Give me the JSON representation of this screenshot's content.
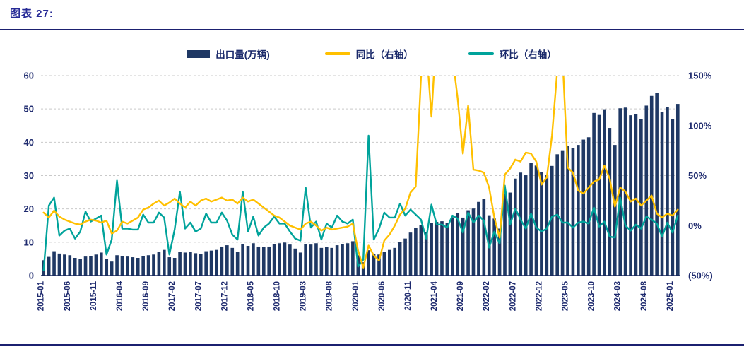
{
  "page": {
    "title": "图表 27:"
  },
  "colors": {
    "accent": "#262a96",
    "rule": "#1b2070",
    "bar": "#1F3864",
    "yoy_line": "#FFC000",
    "mom_line": "#00A39B",
    "axis_text": "#1e2a6e",
    "gridline": "#c9c9c9"
  },
  "legend": [
    {
      "label": "出口量(万辆)",
      "type": "bar",
      "color": "#1F3864"
    },
    {
      "label": "同比（右轴）",
      "type": "line",
      "color": "#FFC000"
    },
    {
      "label": "环比（右轴）",
      "type": "line",
      "color": "#00A39B"
    }
  ],
  "chart_data": {
    "type": "bar+line",
    "title": "图表 27:",
    "grid": "horizontal-dashed",
    "legend_position": "top-center",
    "x_start_month": "2015-01",
    "x_end_month": "2025-02",
    "x_tick_every": 5,
    "x_tick_labels": [
      "2015-01",
      "2015-06",
      "2015-11",
      "2016-04",
      "2016-09",
      "2017-02",
      "2017-07",
      "2017-12",
      "2018-05",
      "2018-10",
      "2019-03",
      "2019-08",
      "2020-01",
      "2020-06",
      "2020-11",
      "2021-04",
      "2021-09",
      "2022-02",
      "2022-07",
      "2022-12",
      "2023-05",
      "2023-10",
      "2024-03",
      "2024-08",
      "2025-01"
    ],
    "left_axis": {
      "min": 0,
      "max": 60,
      "tick_values": [
        0,
        10,
        20,
        30,
        40,
        50,
        60
      ],
      "tick_labels": [
        "0",
        "10",
        "20",
        "30",
        "40",
        "50",
        "60"
      ]
    },
    "right_axis": {
      "min": -50,
      "max": 150,
      "tick_values": [
        -50,
        0,
        50,
        100,
        150
      ],
      "tick_labels": [
        "(50%)",
        "0%",
        "50%",
        "100%",
        "150%"
      ]
    },
    "series": [
      {
        "name": "出口量(万辆)",
        "type": "bar",
        "axis": "left",
        "color": "#1F3864",
        "values": [
          4.6,
          5.6,
          7.3,
          6.6,
          6.3,
          6.1,
          5.3,
          5.0,
          5.7,
          5.9,
          6.3,
          6.9,
          4.9,
          4.2,
          6.1,
          5.9,
          5.7,
          5.5,
          5.3,
          5.9,
          6.1,
          6.3,
          7.1,
          7.7,
          5.5,
          5.3,
          7.1,
          6.9,
          7.1,
          6.7,
          6.5,
          7.3,
          7.5,
          7.7,
          8.7,
          9.1,
          8.3,
          7.1,
          9.5,
          8.9,
          9.7,
          8.7,
          8.5,
          8.7,
          9.5,
          9.7,
          9.9,
          9.3,
          8.1,
          6.9,
          9.5,
          9.3,
          9.7,
          8.3,
          8.5,
          8.3,
          9.1,
          9.5,
          9.7,
          10.3,
          6.1,
          4.0,
          7.6,
          6.5,
          6.3,
          7.1,
          7.7,
          8.3,
          10.1,
          11.1,
          12.9,
          14.3,
          15.1,
          13.1,
          15.9,
          16.1,
          16.3,
          15.9,
          17.5,
          18.8,
          17.4,
          19.6,
          20.1,
          22.1,
          23.1,
          18.1,
          17.1,
          14.1,
          24.6,
          24.9,
          29.1,
          30.9,
          30.1,
          33.8,
          33.0,
          31.1,
          30.1,
          32.9,
          36.4,
          37.6,
          38.9,
          38.2,
          39.2,
          40.8,
          41.5,
          48.8,
          48.2,
          49.9,
          44.3,
          39.2,
          50.2,
          50.4,
          48.1,
          48.5,
          46.9,
          51.0,
          53.9,
          54.8,
          49.0,
          50.5,
          47.0,
          51.5
        ]
      },
      {
        "name": "同比（右轴）",
        "type": "line",
        "axis": "right",
        "color": "#FFC000",
        "values": [
          13,
          8,
          15,
          9,
          6,
          4,
          2,
          1,
          4,
          6,
          5,
          3,
          5,
          -8,
          -5,
          4,
          2,
          5,
          8,
          16,
          18,
          22,
          25,
          20,
          23,
          27,
          22,
          18,
          24,
          20,
          25,
          27,
          24,
          26,
          28,
          25,
          26,
          22,
          28,
          24,
          26,
          22,
          18,
          14,
          10,
          8,
          4,
          0,
          -2,
          -4,
          2,
          4,
          0,
          -5,
          -2,
          -4,
          -3,
          -2,
          -1,
          2,
          -25,
          -42,
          -20,
          -30,
          -35,
          -15,
          -9,
          0,
          11,
          17,
          33,
          39,
          148,
          180,
          109,
          200,
          230,
          210,
          170,
          127,
          72,
          120,
          56,
          55,
          53,
          38,
          8,
          -12,
          51,
          57,
          66,
          64,
          73,
          72,
          64,
          41,
          48,
          90,
          155,
          170,
          58,
          53,
          35,
          32,
          38,
          44,
          46,
          60,
          47,
          19,
          38,
          34,
          24,
          27,
          20,
          25,
          30,
          12,
          8,
          12,
          10,
          16
        ]
      },
      {
        "name": "环比（右轴）",
        "type": "line",
        "axis": "right",
        "color": "#00A39B",
        "values": [
          -45,
          20,
          28,
          -10,
          -5,
          -3,
          -13,
          -6,
          14,
          4,
          7,
          10,
          -29,
          -14,
          45,
          -3,
          -3,
          -4,
          -4,
          11,
          3,
          3,
          13,
          8,
          -29,
          -4,
          34,
          -3,
          3,
          -6,
          -3,
          12,
          3,
          3,
          13,
          5,
          -9,
          -14,
          34,
          -6,
          9,
          -10,
          -2,
          2,
          9,
          2,
          2,
          -6,
          -13,
          -15,
          38,
          -2,
          4,
          -14,
          2,
          -2,
          10,
          4,
          2,
          6,
          -41,
          -34,
          90,
          -14,
          -3,
          13,
          8,
          8,
          22,
          10,
          16,
          11,
          6,
          -13,
          21,
          1,
          1,
          -2,
          10,
          7,
          -7,
          13,
          3,
          10,
          5,
          -22,
          -6,
          -18,
          40,
          1,
          17,
          6,
          -3,
          12,
          -2,
          -6,
          -3,
          9,
          11,
          3,
          3,
          -2,
          3,
          4,
          2,
          18,
          -1,
          4,
          -11,
          -12,
          28,
          0,
          -5,
          1,
          -3,
          9,
          6,
          2,
          -11,
          3,
          -7,
          10
        ]
      }
    ]
  }
}
